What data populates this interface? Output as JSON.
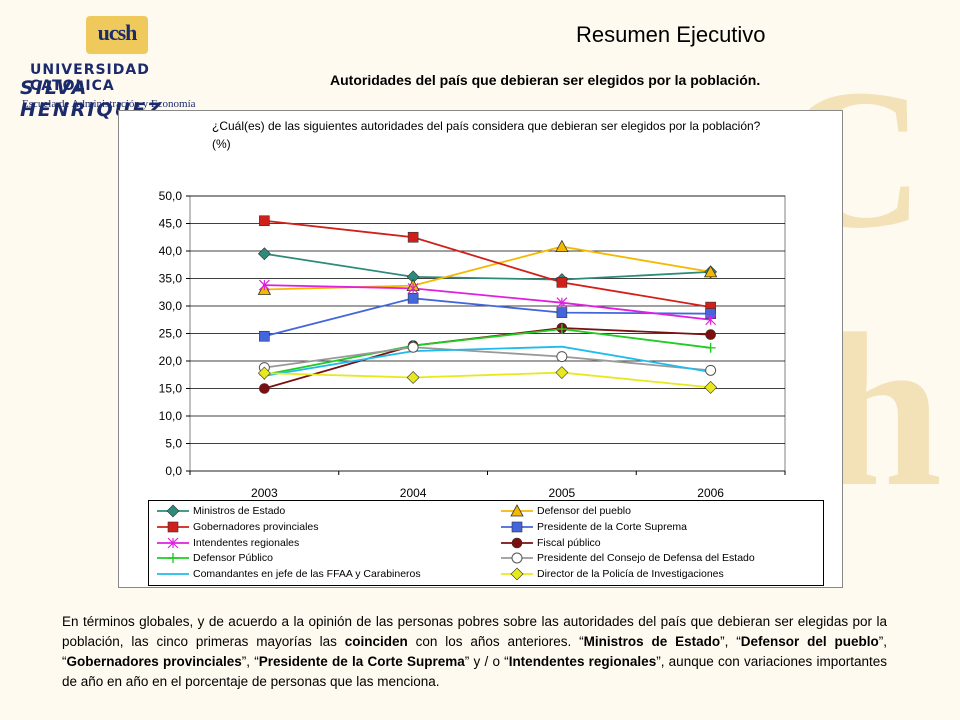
{
  "header": {
    "logo_mark": "ucsh",
    "logo_line1": "UNIVERSIDAD CATOLICA",
    "logo_line2": "SILVA HENRIQUEZ",
    "logo_line3": "Escuela de Administración y Economía",
    "title": "Resumen Ejecutivo",
    "subtitle": "Autoridades del país que debieran ser elegidos por la población."
  },
  "chart_data": {
    "type": "line",
    "title": "¿Cuál(es) de las siguientes autoridades del país considera que debieran ser elegidos por la población? (%)",
    "categories": [
      "2003",
      "2004",
      "2005",
      "2006"
    ],
    "ylim": [
      0,
      50
    ],
    "yticks": [
      "0,0",
      "5,0",
      "10,0",
      "15,0",
      "20,0",
      "25,0",
      "30,0",
      "35,0",
      "40,0",
      "45,0",
      "50,0"
    ],
    "grid": true,
    "legend_position": "bottom",
    "series": [
      {
        "name": "Ministros de Estado",
        "values": [
          39.5,
          35.3,
          34.8,
          36.2
        ],
        "color": "#2e8b7a",
        "marker": "diamond"
      },
      {
        "name": "Defensor del pueblo",
        "values": [
          33.0,
          33.7,
          40.8,
          36.2
        ],
        "color": "#f5b800",
        "marker": "triangle"
      },
      {
        "name": "Gobernadores provinciales",
        "values": [
          45.5,
          42.5,
          34.3,
          29.8
        ],
        "color": "#d0201a",
        "marker": "square"
      },
      {
        "name": "Presidente de la Corte Suprema",
        "values": [
          24.5,
          31.4,
          28.8,
          28.6
        ],
        "color": "#4466dd",
        "marker": "square"
      },
      {
        "name": "Intendentes regionales",
        "values": [
          33.8,
          33.2,
          30.6,
          27.5
        ],
        "color": "#e020e0",
        "marker": "x"
      },
      {
        "name": "Fiscal público",
        "values": [
          15.0,
          22.8,
          26.0,
          24.8
        ],
        "color": "#7a1010",
        "marker": "circle"
      },
      {
        "name": "Defensor Público",
        "values": [
          17.5,
          22.8,
          25.8,
          22.4
        ],
        "color": "#22cc22",
        "marker": "plus"
      },
      {
        "name": "Presidente del Consejo de Defensa del Estado",
        "values": [
          18.8,
          22.5,
          20.8,
          18.3
        ],
        "color": "#999999",
        "marker": "open-circle"
      },
      {
        "name": "Comandantes en jefe de las FFAA y Carabineros",
        "values": [
          17.3,
          21.8,
          22.6,
          18.0
        ],
        "color": "#20bbee",
        "marker": "none"
      },
      {
        "name": "Director de la Policía de Investigaciones",
        "values": [
          17.8,
          17.0,
          17.9,
          15.2
        ],
        "color": "#e8e820",
        "marker": "diamond"
      }
    ]
  },
  "paragraph": {
    "p1": "En términos globales, y de acuerdo a la opinión de las personas pobres sobre las autoridades del país que debieran ser elegidas por la población, las cinco primeras mayorías las ",
    "p_bold_coinciden": "coinciden",
    "p2": " con los años anteriores. “",
    "b1": "Ministros de Estado",
    "s1": "”, “",
    "b2": "Defensor del pueblo",
    "s2": "”, “",
    "b3": "Gobernadores provinciales",
    "s3": "”, “",
    "b4": "Presidente de la Corte Suprema",
    "s4": "” y / o “",
    "b5": "Intendentes regionales",
    "p3": "”, aunque con variaciones importantes de año en año en el porcentaje de personas que las menciona."
  }
}
